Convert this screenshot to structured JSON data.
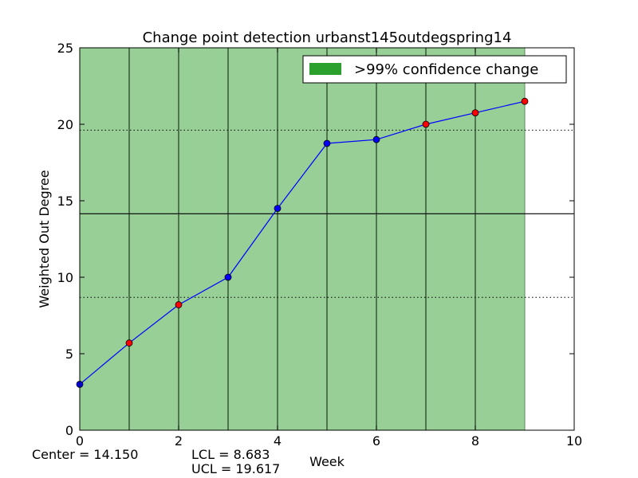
{
  "chart_data": {
    "type": "line",
    "title": "Change point detection urbanst145outdegspring14",
    "xlabel": "Week",
    "ylabel": "Weighted Out Degree",
    "xlim": [
      0,
      10
    ],
    "ylim": [
      0,
      25
    ],
    "xticks": [
      "0",
      "2",
      "4",
      "6",
      "8",
      "10"
    ],
    "yticks": [
      "0",
      "5",
      "10",
      "15",
      "20",
      "25"
    ],
    "x": [
      0,
      1,
      2,
      3,
      4,
      5,
      6,
      7,
      8,
      9
    ],
    "values": [
      3.0,
      5.7,
      8.2,
      10.0,
      14.5,
      18.75,
      19.0,
      20.0,
      20.75,
      21.5
    ],
    "point_colors": [
      "#0000ff",
      "#ff0000",
      "#ff0000",
      "#0000ff",
      "#0000ff",
      "#0000ff",
      "#0000ff",
      "#ff0000",
      "#ff0000",
      "#ff0000"
    ],
    "line_color": "#0000ff",
    "center": 14.15,
    "lcl": 8.683,
    "ucl": 19.617,
    "shaded_region": {
      "from": 0,
      "to": 9,
      "color": "#97cf97"
    },
    "vertical_lines": [
      1,
      2,
      3,
      4,
      5,
      6,
      7,
      8
    ],
    "legend": {
      "label": ">99% confidence change",
      "color": "#2ca02c",
      "placement": "top-right"
    },
    "grid": false
  },
  "footer": {
    "center_text": "Center = 14.150",
    "lcl_text": "LCL = 8.683",
    "ucl_text": "UCL = 19.617"
  }
}
